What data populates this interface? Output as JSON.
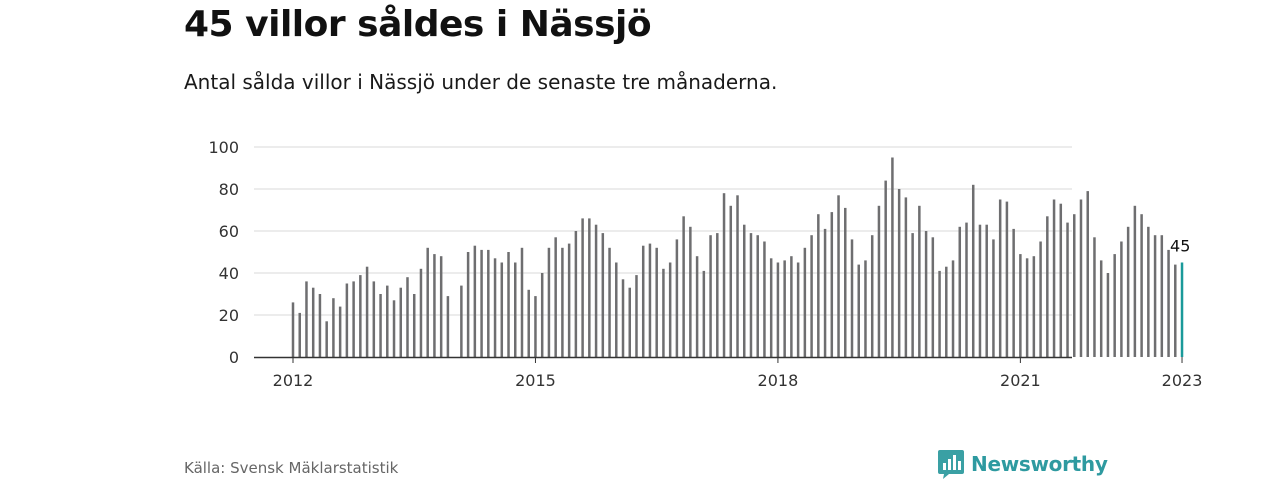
{
  "title": "45 villor såldes i Nässjö",
  "subtitle": "Antal sålda villor i Nässjö under de senaste tre månaderna.",
  "source": "Källa: Svensk Mäklarstatistik",
  "brand": {
    "name": "Newsworthy",
    "icon": "newsworthy-logo-icon",
    "color": "#2e9aa0"
  },
  "colors": {
    "bar": "#6e6e70",
    "highlight": "#1a9a9a",
    "grid": "#d9d9d9",
    "axis": "#333333"
  },
  "chart_data": {
    "type": "bar",
    "x_start": "2012-01",
    "x_end": "2023-01",
    "interval": "month",
    "xtick_labels": [
      "2012",
      "2015",
      "2018",
      "2021",
      "2023"
    ],
    "ytick_labels": [
      "0",
      "20",
      "40",
      "60",
      "80",
      "100"
    ],
    "ylim": [
      0,
      100
    ],
    "grid": true,
    "highlight_value": "45",
    "values": [
      26,
      21,
      36,
      33,
      30,
      17,
      28,
      24,
      35,
      36,
      39,
      43,
      36,
      30,
      34,
      27,
      33,
      38,
      30,
      42,
      52,
      49,
      48,
      29,
      null,
      34,
      50,
      53,
      51,
      51,
      47,
      45,
      50,
      45,
      52,
      32,
      29,
      40,
      52,
      57,
      52,
      54,
      60,
      66,
      66,
      63,
      59,
      52,
      45,
      37,
      33,
      39,
      53,
      54,
      52,
      42,
      45,
      56,
      67,
      62,
      48,
      41,
      58,
      59,
      78,
      72,
      77,
      63,
      59,
      58,
      55,
      47,
      45,
      46,
      48,
      45,
      52,
      58,
      68,
      61,
      69,
      77,
      71,
      56,
      44,
      46,
      58,
      72,
      84,
      95,
      80,
      76,
      59,
      72,
      60,
      57,
      41,
      43,
      46,
      62,
      64,
      82,
      63,
      63,
      56,
      75,
      74,
      61,
      49,
      47,
      48,
      55,
      67,
      75,
      73,
      64,
      68,
      75,
      79,
      57,
      46,
      40,
      49,
      55,
      62,
      72,
      68,
      62,
      58,
      58,
      51,
      44,
      45
    ]
  }
}
